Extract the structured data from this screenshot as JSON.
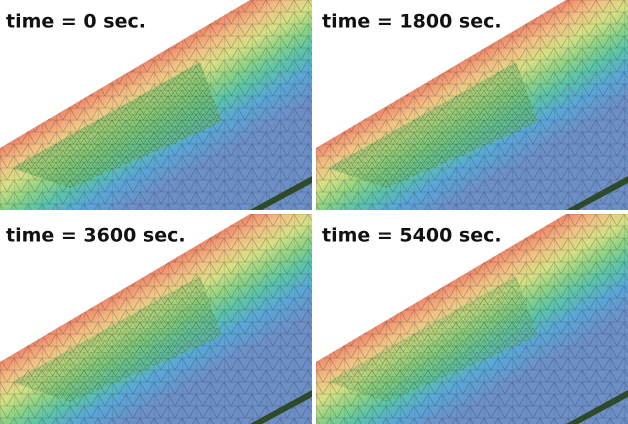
{
  "panels": [
    {
      "label": "time = 0 sec."
    },
    {
      "label": "time = 1800 sec."
    },
    {
      "label": "time = 3600 sec."
    },
    {
      "label": "time = 5400 sec."
    }
  ]
}
